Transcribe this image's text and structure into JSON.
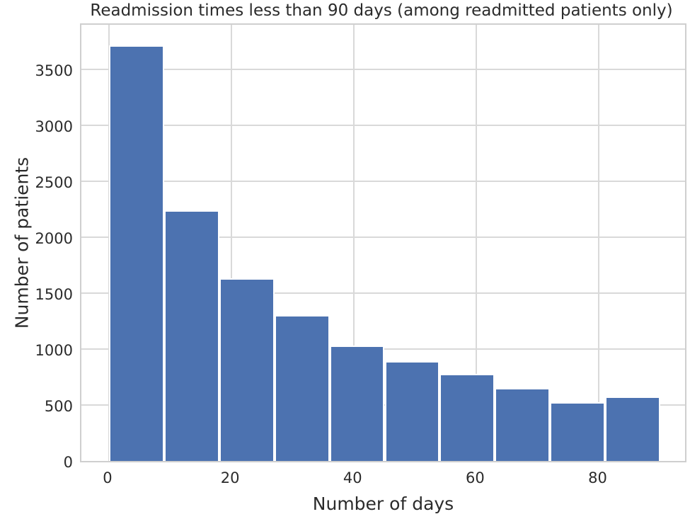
{
  "chart_data": {
    "type": "bar",
    "subtype": "histogram",
    "title": "Readmission times less than 90 days (among readmitted patients only)",
    "xlabel": "Number of days",
    "ylabel": "Number of patients",
    "bin_edges": [
      0,
      9,
      18,
      27,
      36,
      45,
      54,
      63,
      72,
      81,
      90
    ],
    "values": [
      3715,
      2240,
      1630,
      1305,
      1030,
      890,
      780,
      655,
      525,
      575
    ],
    "xticks": [
      0,
      20,
      40,
      60,
      80
    ],
    "yticks": [
      0,
      500,
      1000,
      1500,
      2000,
      2500,
      3000,
      3500
    ],
    "xlim": [
      -4.5,
      94.5
    ],
    "ylim": [
      0,
      3924
    ],
    "grid": true,
    "legend": "none",
    "bar_color": "#4c72b0",
    "bar_edge_color": "#ffffff",
    "grid_color": "#d9d9d9",
    "spine_color": "#cfcfcf",
    "text_color": "#2b2b2b",
    "background_color": "#ffffff"
  }
}
